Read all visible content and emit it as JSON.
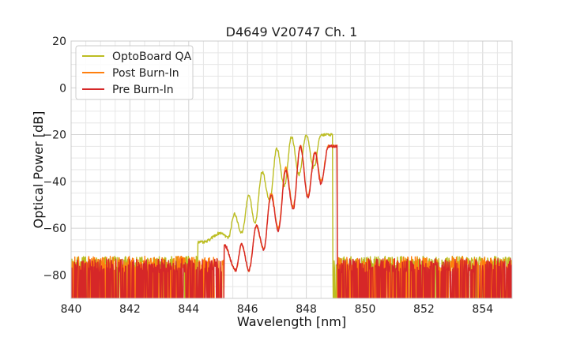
{
  "chart_data": {
    "type": "line",
    "title": "D4649 V20747 Ch. 1",
    "xlabel": "Wavelength [nm]",
    "ylabel": "Optical Power [dB]",
    "xlim": [
      840,
      855
    ],
    "ylim": [
      -90,
      20
    ],
    "xticks": [
      "840",
      "842",
      "844",
      "846",
      "848",
      "850",
      "852",
      "854"
    ],
    "yticks": [
      "20",
      "0",
      "−20",
      "−40",
      "−60",
      "−80"
    ],
    "grid": true,
    "legend_position": "top-left",
    "series": [
      {
        "name": "OptoBoard QA",
        "color": "#bcbd22",
        "peaks": [
          {
            "x": 844.5,
            "y": -66
          },
          {
            "x": 845.1,
            "y": -62
          },
          {
            "x": 845.55,
            "y": -54
          },
          {
            "x": 846.05,
            "y": -46
          },
          {
            "x": 846.5,
            "y": -36
          },
          {
            "x": 847.0,
            "y": -26
          },
          {
            "x": 847.5,
            "y": -21
          },
          {
            "x": 848.0,
            "y": -20
          },
          {
            "x": 848.5,
            "y": -20
          }
        ],
        "valleys": [
          {
            "x": 845.35,
            "y": -64
          },
          {
            "x": 845.8,
            "y": -62
          },
          {
            "x": 846.25,
            "y": -58
          },
          {
            "x": 846.75,
            "y": -48
          },
          {
            "x": 847.25,
            "y": -42
          },
          {
            "x": 847.75,
            "y": -37
          },
          {
            "x": 848.25,
            "y": -34
          }
        ],
        "band_start": 844.3,
        "band_end": 848.9,
        "noise_floor": [
          -90,
          -72
        ]
      },
      {
        "name": "Post Burn-In",
        "color": "#ff7f0e",
        "peaks": [
          {
            "x": 845.2,
            "y": -67
          },
          {
            "x": 845.8,
            "y": -67
          },
          {
            "x": 846.3,
            "y": -59
          },
          {
            "x": 846.8,
            "y": -45
          },
          {
            "x": 847.3,
            "y": -34
          },
          {
            "x": 847.8,
            "y": -25
          },
          {
            "x": 848.3,
            "y": -27
          },
          {
            "x": 848.75,
            "y": -25
          }
        ],
        "valleys": [
          {
            "x": 845.6,
            "y": -78
          },
          {
            "x": 846.05,
            "y": -78
          },
          {
            "x": 846.55,
            "y": -69
          },
          {
            "x": 847.05,
            "y": -60
          },
          {
            "x": 847.55,
            "y": -51
          },
          {
            "x": 848.05,
            "y": -46
          },
          {
            "x": 848.5,
            "y": -40
          }
        ],
        "band_start": 845.2,
        "band_end": 849.05,
        "noise_floor": [
          -90,
          -72
        ]
      },
      {
        "name": "Pre Burn-In",
        "color": "#d62728",
        "peaks": [
          {
            "x": 845.2,
            "y": -67
          },
          {
            "x": 845.8,
            "y": -67
          },
          {
            "x": 846.3,
            "y": -59
          },
          {
            "x": 846.8,
            "y": -46
          },
          {
            "x": 847.3,
            "y": -35
          },
          {
            "x": 847.8,
            "y": -25
          },
          {
            "x": 848.3,
            "y": -28
          },
          {
            "x": 848.75,
            "y": -25
          }
        ],
        "valleys": [
          {
            "x": 845.6,
            "y": -78
          },
          {
            "x": 846.05,
            "y": -78
          },
          {
            "x": 846.55,
            "y": -69
          },
          {
            "x": 847.05,
            "y": -61
          },
          {
            "x": 847.55,
            "y": -52
          },
          {
            "x": 848.05,
            "y": -47
          },
          {
            "x": 848.5,
            "y": -41
          }
        ],
        "band_start": 845.2,
        "band_end": 849.05,
        "noise_floor": [
          -90,
          -73
        ]
      }
    ]
  }
}
